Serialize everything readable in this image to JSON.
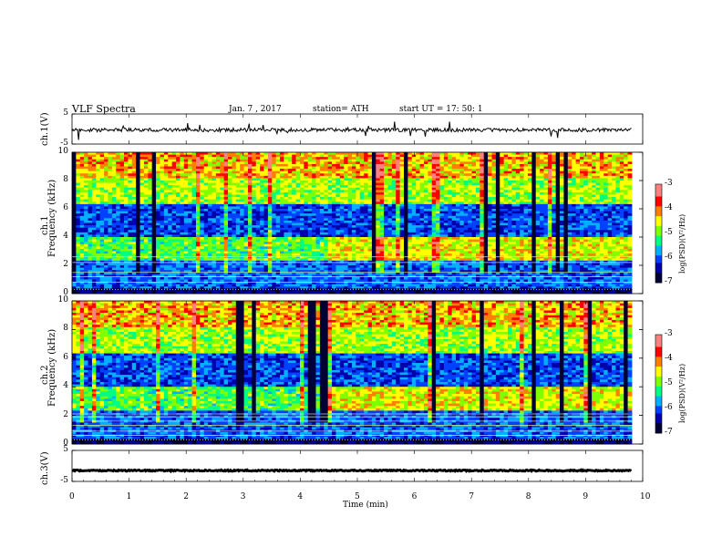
{
  "header": {
    "title": "VLF  Spectra",
    "date": "Jan.  7  , 2017",
    "station": "station= ATH",
    "start": "start  UT  =    17: 50: 1"
  },
  "colors": {
    "background": "#ffffff",
    "axis": "#000000",
    "colormap": [
      "#000033",
      "#0000aa",
      "#0040ff",
      "#00b0ff",
      "#00ff80",
      "#80ff00",
      "#ffff00",
      "#ff8000",
      "#ff0000",
      "#ff8080",
      "#ffffff"
    ]
  },
  "chart_data": [
    {
      "type": "line",
      "panel": "ch1",
      "ylabel": "ch.1(V)",
      "ylim": [
        -5,
        5
      ],
      "yticks": [
        "5",
        "-5"
      ],
      "xlim": [
        0,
        10
      ],
      "series": [
        {
          "values_description_note": null,
          "mean": -0.3
        }
      ]
    },
    {
      "type": "heatmap",
      "panel": "ch1-spectrogram",
      "ylabel": "ch.1\nFrequency  (kHz)",
      "ylim": [
        0,
        10
      ],
      "yticks": [
        "0",
        "2",
        "4",
        "6",
        "8",
        "10"
      ],
      "xlim": [
        0,
        9.8
      ],
      "colorbar": {
        "label": "log(PSD)(V²/Hz)",
        "range": [
          -7,
          -3
        ],
        "ticks": [
          "-3",
          "-4",
          "-5",
          "-6",
          "-7"
        ]
      }
    },
    {
      "type": "heatmap",
      "panel": "ch2-spectrogram",
      "ylabel": "ch.2\nFrequency  (kHz)",
      "ylim": [
        0,
        10
      ],
      "yticks": [
        "0",
        "2",
        "4",
        "6",
        "8",
        "10"
      ],
      "xlim": [
        0,
        9.8
      ],
      "colorbar": {
        "label": "log(PSD)(V²/Hz)",
        "range": [
          -7,
          -3
        ],
        "ticks": [
          "-3",
          "-4",
          "-5",
          "-6",
          "-7"
        ]
      }
    },
    {
      "type": "line",
      "panel": "ch3",
      "ylabel": "ch.3(V)",
      "ylim": [
        -5,
        5
      ],
      "yticks": [
        "5",
        "-5"
      ],
      "xlim": [
        0,
        10
      ],
      "series": [
        {
          "mean": -1.5
        }
      ]
    }
  ],
  "xaxis": {
    "label": "Time  (min)",
    "ticks": [
      "0",
      "1",
      "2",
      "3",
      "4",
      "5",
      "6",
      "7",
      "8",
      "9",
      "10"
    ],
    "range": [
      0,
      10
    ]
  },
  "labels": {
    "ch1": "ch.1(V)",
    "ch1_freq_a": "ch.1",
    "ch1_freq_b": "Frequency  (kHz)",
    "ch2_freq_a": "ch.2",
    "ch2_freq_b": "Frequency  (kHz)",
    "ch3": "ch.3(V)",
    "cbar1": "log(PSD)(V²/Hz)",
    "cbar2": "log(PSD)(V²/Hz)"
  }
}
